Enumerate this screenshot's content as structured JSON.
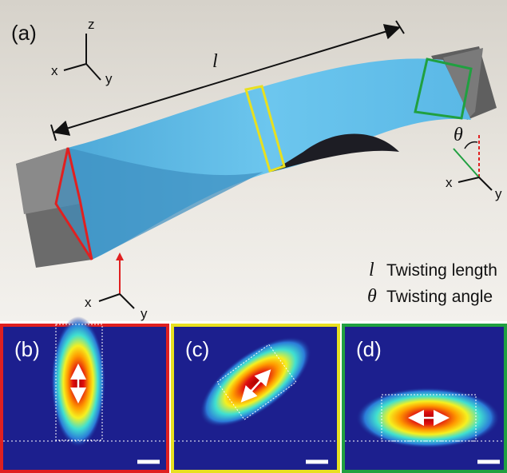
{
  "panel_a": {
    "label": "(a)",
    "axes_top": {
      "x": "x",
      "y": "y",
      "z": "z"
    },
    "length_symbol": "l",
    "angle_symbol": "θ",
    "axes_right": {
      "x": "x",
      "y": "y"
    },
    "axes_bottom": {
      "x": "x",
      "y": "y"
    },
    "legend": [
      {
        "symbol": "l",
        "text": "Twisting length"
      },
      {
        "symbol": "θ",
        "text": "Twisting angle"
      }
    ]
  },
  "panels": [
    {
      "label": "(b)"
    },
    {
      "label": "(c)"
    },
    {
      "label": "(d)"
    }
  ]
}
